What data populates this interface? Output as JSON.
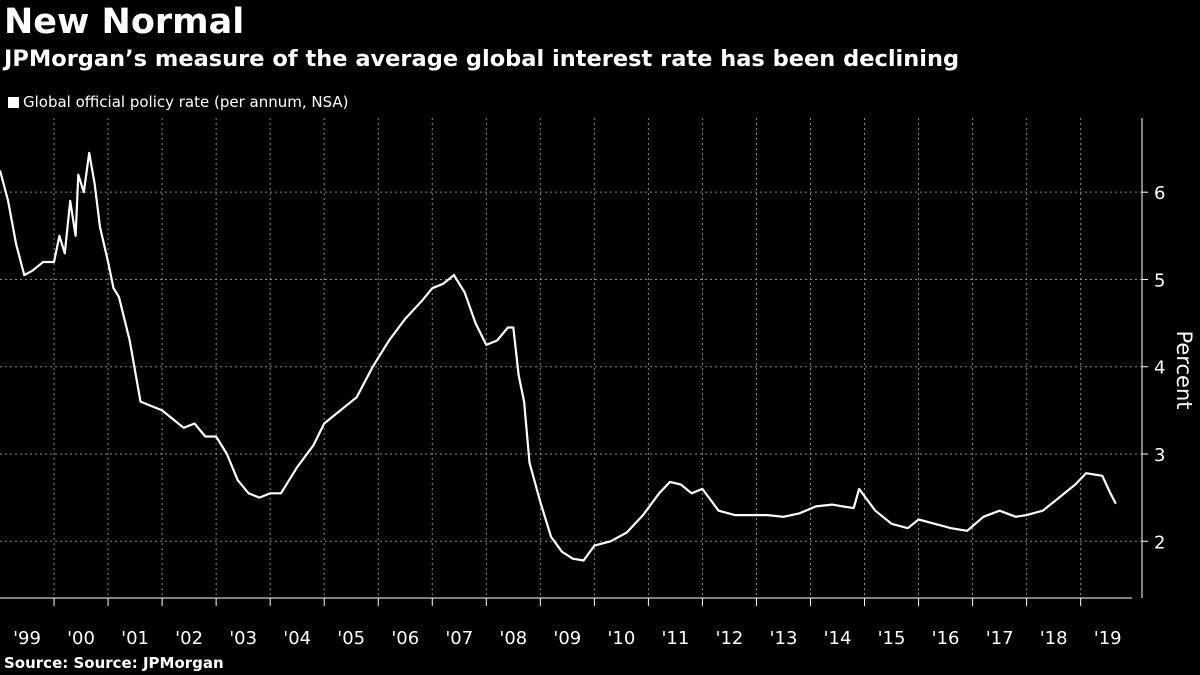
{
  "title": "New Normal",
  "subtitle": "JPMorgan’s measure of the average global interest rate has been declining",
  "source": "Source: Source: JPMorgan",
  "chart_data": {
    "type": "line",
    "title": "New Normal",
    "subtitle": "JPMorgan’s measure of the average global interest rate has been declining",
    "ylabel": "Percent",
    "xlabel": "",
    "ylim": [
      1.35,
      6.85
    ],
    "xlim": [
      1999.0,
      2019.95
    ],
    "yticks": [
      2,
      3,
      4,
      5,
      6
    ],
    "xtick_labels": [
      "'99",
      "'00",
      "'01",
      "'02",
      "'03",
      "'04",
      "'05",
      "'06",
      "'07",
      "'08",
      "'09",
      "'10",
      "'11",
      "'12",
      "'13",
      "'14",
      "'15",
      "'16",
      "'17",
      "'18",
      "'19"
    ],
    "grid": true,
    "legend_position": "top-left",
    "colors": {
      "background": "#000000",
      "line": "#ffffff",
      "grid": "#8a8a8a"
    },
    "series": [
      {
        "name": "Global official policy rate (per annum, NSA)",
        "x": [
          1999.0,
          1999.15,
          1999.3,
          1999.45,
          1999.6,
          1999.8,
          2000.0,
          2000.1,
          2000.2,
          2000.3,
          2000.4,
          2000.45,
          2000.55,
          2000.65,
          2000.75,
          2000.85,
          2001.0,
          2001.1,
          2001.2,
          2001.4,
          2001.6,
          2001.8,
          2002.0,
          2002.2,
          2002.4,
          2002.6,
          2002.8,
          2003.0,
          2003.2,
          2003.4,
          2003.6,
          2003.8,
          2004.0,
          2004.2,
          2004.5,
          2004.8,
          2005.0,
          2005.3,
          2005.6,
          2005.9,
          2006.2,
          2006.5,
          2006.8,
          2007.0,
          2007.2,
          2007.4,
          2007.6,
          2007.8,
          2008.0,
          2008.2,
          2008.4,
          2008.5,
          2008.6,
          2008.7,
          2008.8,
          2009.0,
          2009.2,
          2009.4,
          2009.6,
          2009.8,
          2010.0,
          2010.3,
          2010.6,
          2010.9,
          2011.2,
          2011.4,
          2011.6,
          2011.8,
          2012.0,
          2012.3,
          2012.6,
          2012.9,
          2013.2,
          2013.5,
          2013.8,
          2014.1,
          2014.4,
          2014.6,
          2014.8,
          2014.9,
          2015.2,
          2015.5,
          2015.8,
          2016.0,
          2016.3,
          2016.6,
          2016.9,
          2017.2,
          2017.5,
          2017.8,
          2018.0,
          2018.3,
          2018.6,
          2018.9,
          2019.1,
          2019.3,
          2019.4,
          2019.55,
          2019.65
        ],
        "values": [
          6.25,
          5.9,
          5.4,
          5.05,
          5.1,
          5.2,
          5.2,
          5.5,
          5.3,
          5.9,
          5.5,
          6.2,
          6.0,
          6.45,
          6.1,
          5.6,
          5.2,
          4.9,
          4.8,
          4.3,
          3.6,
          3.55,
          3.5,
          3.4,
          3.3,
          3.35,
          3.2,
          3.2,
          3.0,
          2.7,
          2.55,
          2.5,
          2.55,
          2.55,
          2.85,
          3.1,
          3.35,
          3.5,
          3.65,
          4.0,
          4.3,
          4.55,
          4.75,
          4.9,
          4.95,
          5.05,
          4.85,
          4.5,
          4.25,
          4.3,
          4.45,
          4.45,
          3.9,
          3.6,
          2.9,
          2.45,
          2.05,
          1.88,
          1.8,
          1.78,
          1.95,
          2.0,
          2.1,
          2.3,
          2.55,
          2.68,
          2.65,
          2.55,
          2.6,
          2.35,
          2.3,
          2.3,
          2.3,
          2.28,
          2.32,
          2.4,
          2.42,
          2.4,
          2.38,
          2.6,
          2.35,
          2.2,
          2.15,
          2.25,
          2.2,
          2.15,
          2.12,
          2.28,
          2.35,
          2.28,
          2.3,
          2.35,
          2.5,
          2.65,
          2.78,
          2.76,
          2.75,
          2.55,
          2.43
        ]
      }
    ]
  }
}
